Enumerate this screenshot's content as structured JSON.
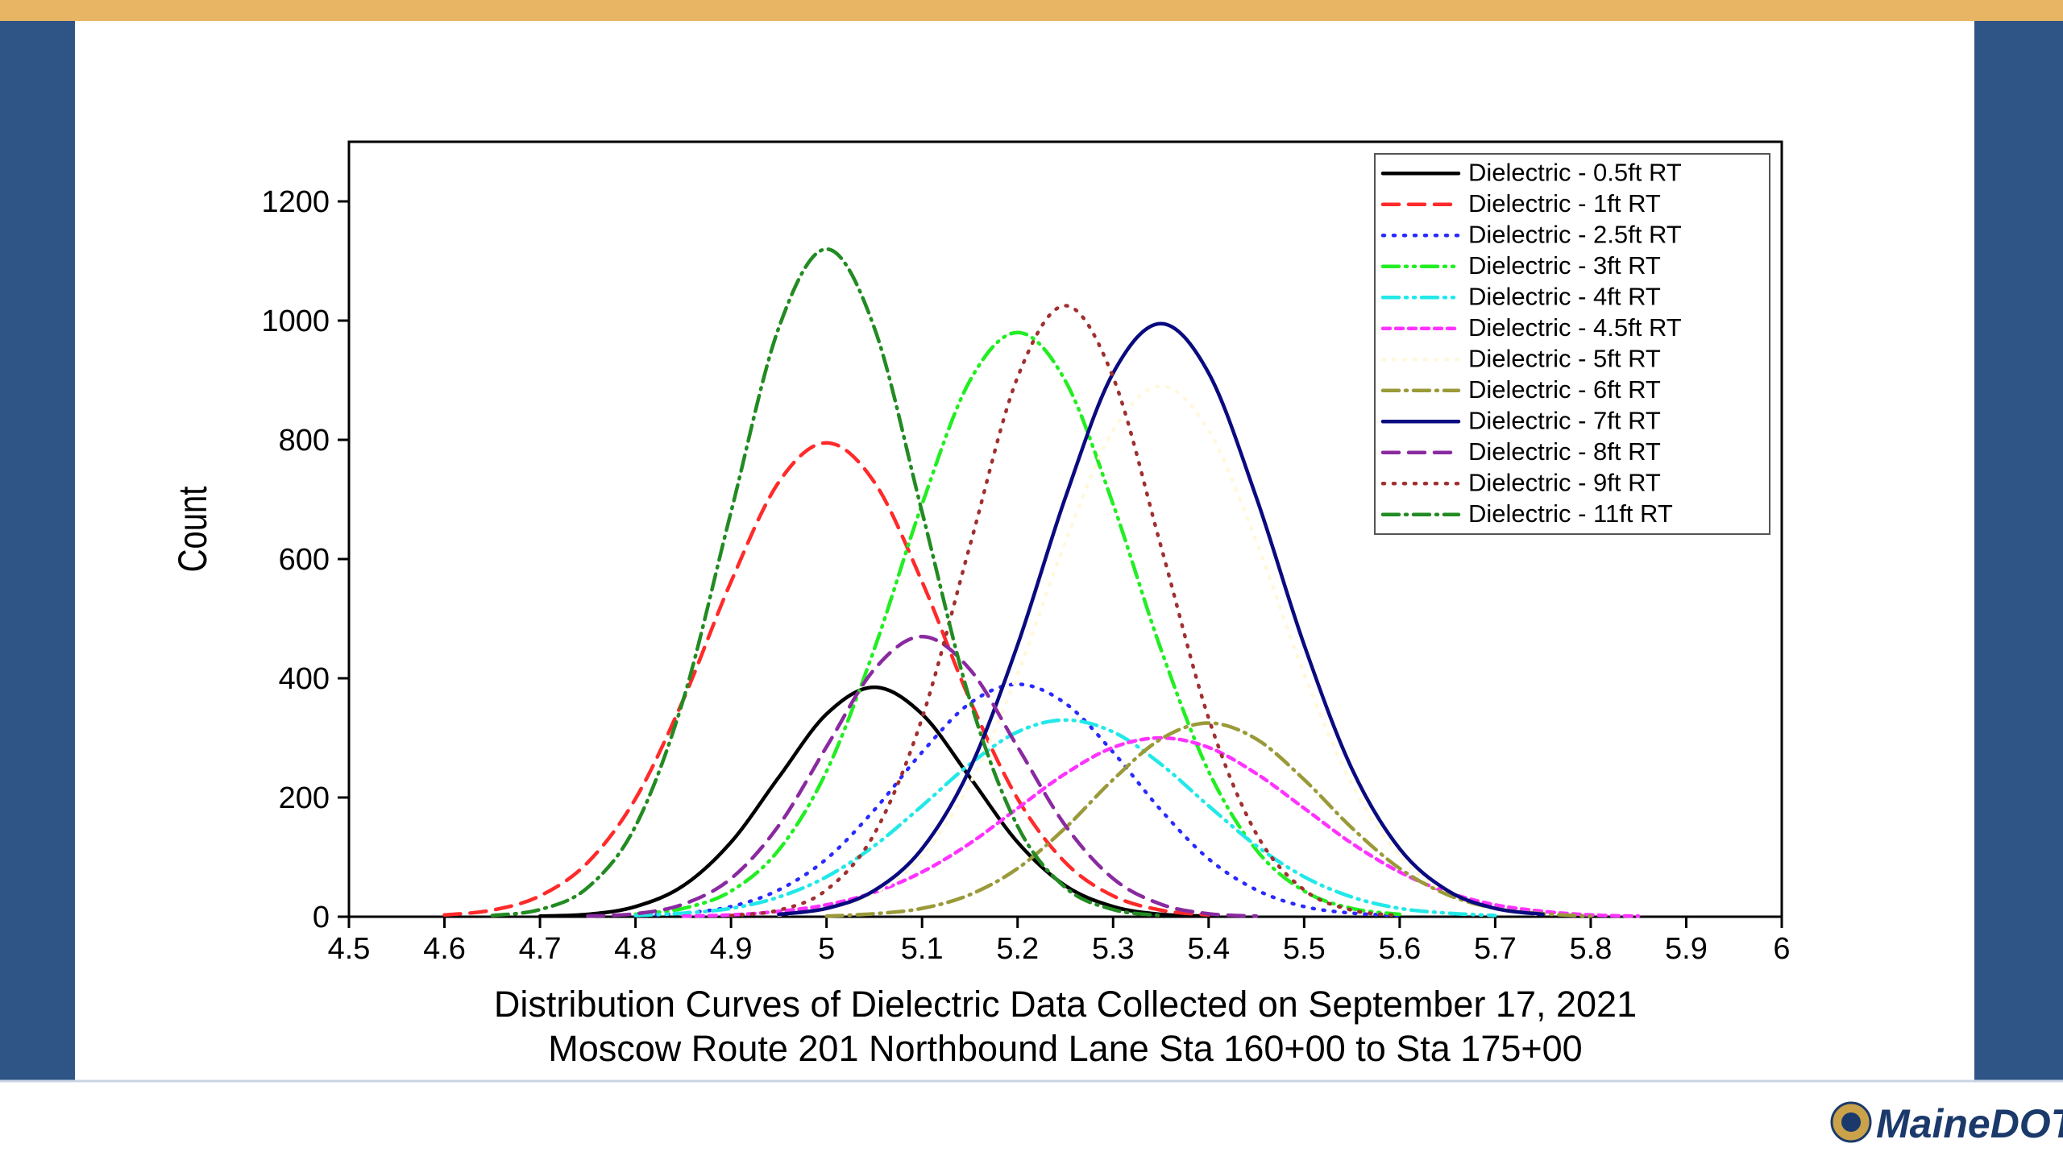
{
  "chart_data": {
    "type": "line",
    "title": "Distribution Curves of Dielectric Data Collected on September 17, 2021",
    "subtitle": "Moscow Route 201 Northbound Lane Sta 160+00 to Sta 175+00",
    "ylabel": "Count",
    "xlim": [
      4.5,
      6
    ],
    "ylim": [
      0,
      1300
    ],
    "xticks": [
      4.5,
      4.6,
      4.7,
      4.8,
      4.9,
      5,
      5.1,
      5.2,
      5.3,
      5.4,
      5.5,
      5.6,
      5.7,
      5.8,
      5.9,
      6
    ],
    "yticks": [
      0,
      200,
      400,
      600,
      800,
      1000,
      1200
    ],
    "grid": false,
    "legend": "upper right",
    "x": [
      4.5,
      4.55,
      4.6,
      4.65,
      4.7,
      4.75,
      4.8,
      4.85,
      4.9,
      4.95,
      5,
      5.05,
      5.1,
      5.15,
      5.2,
      5.25,
      5.3,
      5.35,
      5.4,
      5.45,
      5.5,
      5.55,
      5.6,
      5.65,
      5.7,
      5.75,
      5.8,
      5.85,
      5.9,
      5.95,
      6
    ],
    "series": [
      {
        "name": "Dielectric - 0.5ft RT",
        "color": "#000000",
        "dash": "solid",
        "values": [
          null,
          null,
          null,
          null,
          1,
          4,
          17,
          52,
          125,
          234,
          340,
          385,
          340,
          234,
          125,
          52,
          17,
          4,
          1,
          null,
          null,
          null,
          null,
          null,
          null,
          null,
          null,
          null,
          null,
          null,
          null
        ]
      },
      {
        "name": "Dielectric - 1ft RT",
        "color": "#ff2a2a",
        "dash": "dash",
        "values": [
          null,
          null,
          3,
          11,
          35,
          91,
          198,
          364,
          562,
          729,
          795,
          729,
          562,
          364,
          198,
          91,
          35,
          11,
          3,
          null,
          null,
          null,
          null,
          null,
          null,
          null,
          null,
          null,
          null,
          null,
          null
        ]
      },
      {
        "name": "Dielectric - 2.5ft RT",
        "color": "#2a2aff",
        "dash": "dot",
        "values": [
          null,
          null,
          null,
          null,
          null,
          null,
          2,
          6,
          17,
          45,
          97,
          179,
          276,
          358,
          390,
          358,
          276,
          179,
          97,
          45,
          17,
          6,
          2,
          null,
          null,
          null,
          null,
          null,
          null,
          null,
          null
        ]
      },
      {
        "name": "Dielectric - 3ft RT",
        "color": "#22ee22",
        "dash": "dashdotdot",
        "values": [
          null,
          null,
          null,
          null,
          null,
          null,
          4,
          14,
          43,
          112,
          244,
          449,
          692,
          899,
          980,
          899,
          692,
          449,
          244,
          112,
          43,
          14,
          4,
          null,
          null,
          null,
          null,
          null,
          null,
          null,
          null
        ]
      },
      {
        "name": "Dielectric - 4ft RT",
        "color": "#22e8e8",
        "dash": "dashdotdot",
        "values": [
          null,
          null,
          null,
          null,
          null,
          null,
          2,
          6,
          14,
          33,
          67,
          119,
          186,
          256,
          310,
          330,
          310,
          256,
          186,
          119,
          67,
          33,
          14,
          6,
          2,
          null,
          null,
          null,
          null,
          null,
          null
        ]
      },
      {
        "name": "Dielectric - 4.5ft RT",
        "color": "#ff33ff",
        "dash": "shortdash",
        "values": [
          null,
          null,
          null,
          null,
          null,
          null,
          null,
          1,
          3,
          9,
          20,
          41,
          75,
          123,
          182,
          240,
          284,
          300,
          284,
          240,
          182,
          123,
          75,
          41,
          20,
          9,
          3,
          1,
          null,
          null,
          null
        ]
      },
      {
        "name": "Dielectric - 5ft RT",
        "color": "#fff8dc",
        "dash": "dot",
        "values": [
          null,
          null,
          null,
          null,
          null,
          null,
          null,
          null,
          null,
          3,
          13,
          39,
          102,
          222,
          407,
          629,
          816,
          890,
          816,
          629,
          407,
          222,
          102,
          39,
          13,
          3,
          null,
          null,
          null,
          null,
          null
        ]
      },
      {
        "name": "Dielectric - 6ft RT",
        "color": "#9a9a3a",
        "dash": "dashdot",
        "values": [
          null,
          null,
          null,
          null,
          null,
          null,
          null,
          null,
          null,
          null,
          1,
          5,
          14,
          37,
          81,
          149,
          230,
          298,
          325,
          298,
          230,
          149,
          81,
          37,
          14,
          5,
          1,
          null,
          null,
          null,
          null
        ]
      },
      {
        "name": "Dielectric - 7ft RT",
        "color": "#0a0a80",
        "dash": "solid",
        "values": [
          null,
          null,
          null,
          null,
          null,
          null,
          null,
          null,
          null,
          4,
          14,
          44,
          114,
          248,
          456,
          703,
          912,
          995,
          912,
          703,
          456,
          248,
          114,
          44,
          14,
          4,
          null,
          null,
          null,
          null,
          null
        ]
      },
      {
        "name": "Dielectric - 8ft RT",
        "color": "#8a2aa0",
        "dash": "dash",
        "values": [
          null,
          null,
          null,
          null,
          null,
          1,
          5,
          21,
          64,
          153,
          285,
          415,
          470,
          415,
          285,
          153,
          64,
          21,
          5,
          1,
          null,
          null,
          null,
          null,
          null,
          null,
          null,
          null,
          null,
          null,
          null
        ]
      },
      {
        "name": "Dielectric - 9ft RT",
        "color": "#a03030",
        "dash": "dot",
        "values": [
          null,
          null,
          null,
          null,
          null,
          null,
          null,
          null,
          2,
          11,
          45,
          139,
          333,
          622,
          905,
          1025,
          905,
          622,
          333,
          139,
          45,
          11,
          2,
          null,
          null,
          null,
          null,
          null,
          null,
          null,
          null
        ]
      },
      {
        "name": "Dielectric - 11ft RT",
        "color": "#228b22",
        "dash": "dashdot",
        "values": [
          null,
          null,
          null,
          2,
          12,
          49,
          152,
          364,
          679,
          988,
          1120,
          988,
          679,
          364,
          152,
          49,
          12,
          2,
          null,
          null,
          null,
          null,
          null,
          null,
          null,
          null,
          null,
          null,
          null,
          null,
          null
        ]
      }
    ]
  },
  "logo": "MaineDOT"
}
